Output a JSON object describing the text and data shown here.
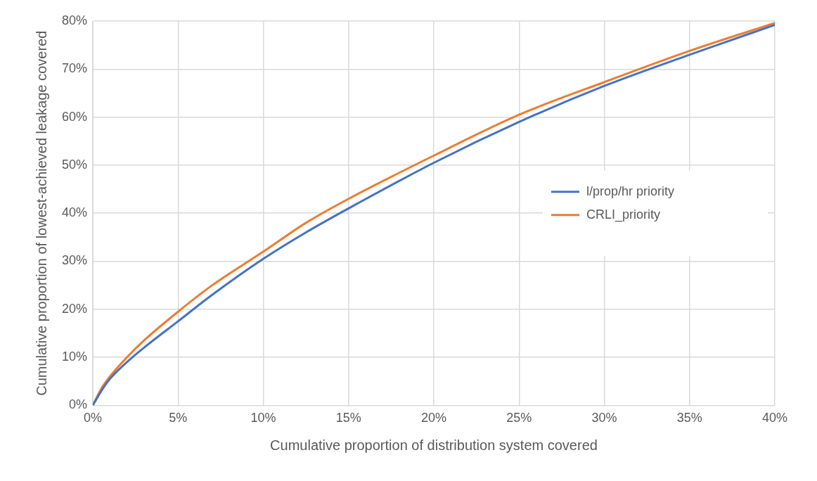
{
  "chart_data": {
    "type": "line",
    "xlabel": "Cumulative proportion of distribution system covered",
    "ylabel": "Cumulative proportion of lowest-achieved leakage covered",
    "xlim": [
      0,
      40
    ],
    "xticks": [
      {
        "value": 0,
        "label": "0%"
      },
      {
        "value": 5,
        "label": "5%"
      },
      {
        "value": 10,
        "label": "10%"
      },
      {
        "value": 15,
        "label": "15%"
      },
      {
        "value": 20,
        "label": "20%"
      },
      {
        "value": 25,
        "label": "25%"
      },
      {
        "value": 30,
        "label": "30%"
      },
      {
        "value": 35,
        "label": "35%"
      },
      {
        "value": 40,
        "label": "40%"
      }
    ],
    "ylim": [
      0,
      80
    ],
    "yticks": [
      {
        "value": 0,
        "label": "0%"
      },
      {
        "value": 10,
        "label": "10%"
      },
      {
        "value": 20,
        "label": "20%"
      },
      {
        "value": 30,
        "label": "30%"
      },
      {
        "value": 40,
        "label": "40%"
      },
      {
        "value": 50,
        "label": "50%"
      },
      {
        "value": 60,
        "label": "60%"
      },
      {
        "value": 70,
        "label": "70%"
      },
      {
        "value": 80,
        "label": "80%"
      }
    ],
    "grid": true,
    "legend": "right",
    "marker": "none",
    "line_style": "solid",
    "x": [
      0,
      0.5,
      1,
      2,
      3,
      5,
      7,
      10,
      12.5,
      15,
      20,
      25,
      30,
      35,
      40
    ],
    "series": [
      {
        "name": "l/prop/hr priority",
        "color": "#4472c4",
        "values": [
          0,
          3,
          5.5,
          9,
          12,
          17.5,
          23,
          30.5,
          36,
          41,
          50.5,
          59,
          66.5,
          73,
          79.2
        ]
      },
      {
        "name": "CRLI_priority",
        "color": "#ed7d31",
        "values": [
          0,
          3.5,
          6,
          10,
          13.5,
          19.5,
          25,
          32,
          38,
          43,
          52,
          60.5,
          67.3,
          73.8,
          79.6
        ]
      }
    ]
  }
}
